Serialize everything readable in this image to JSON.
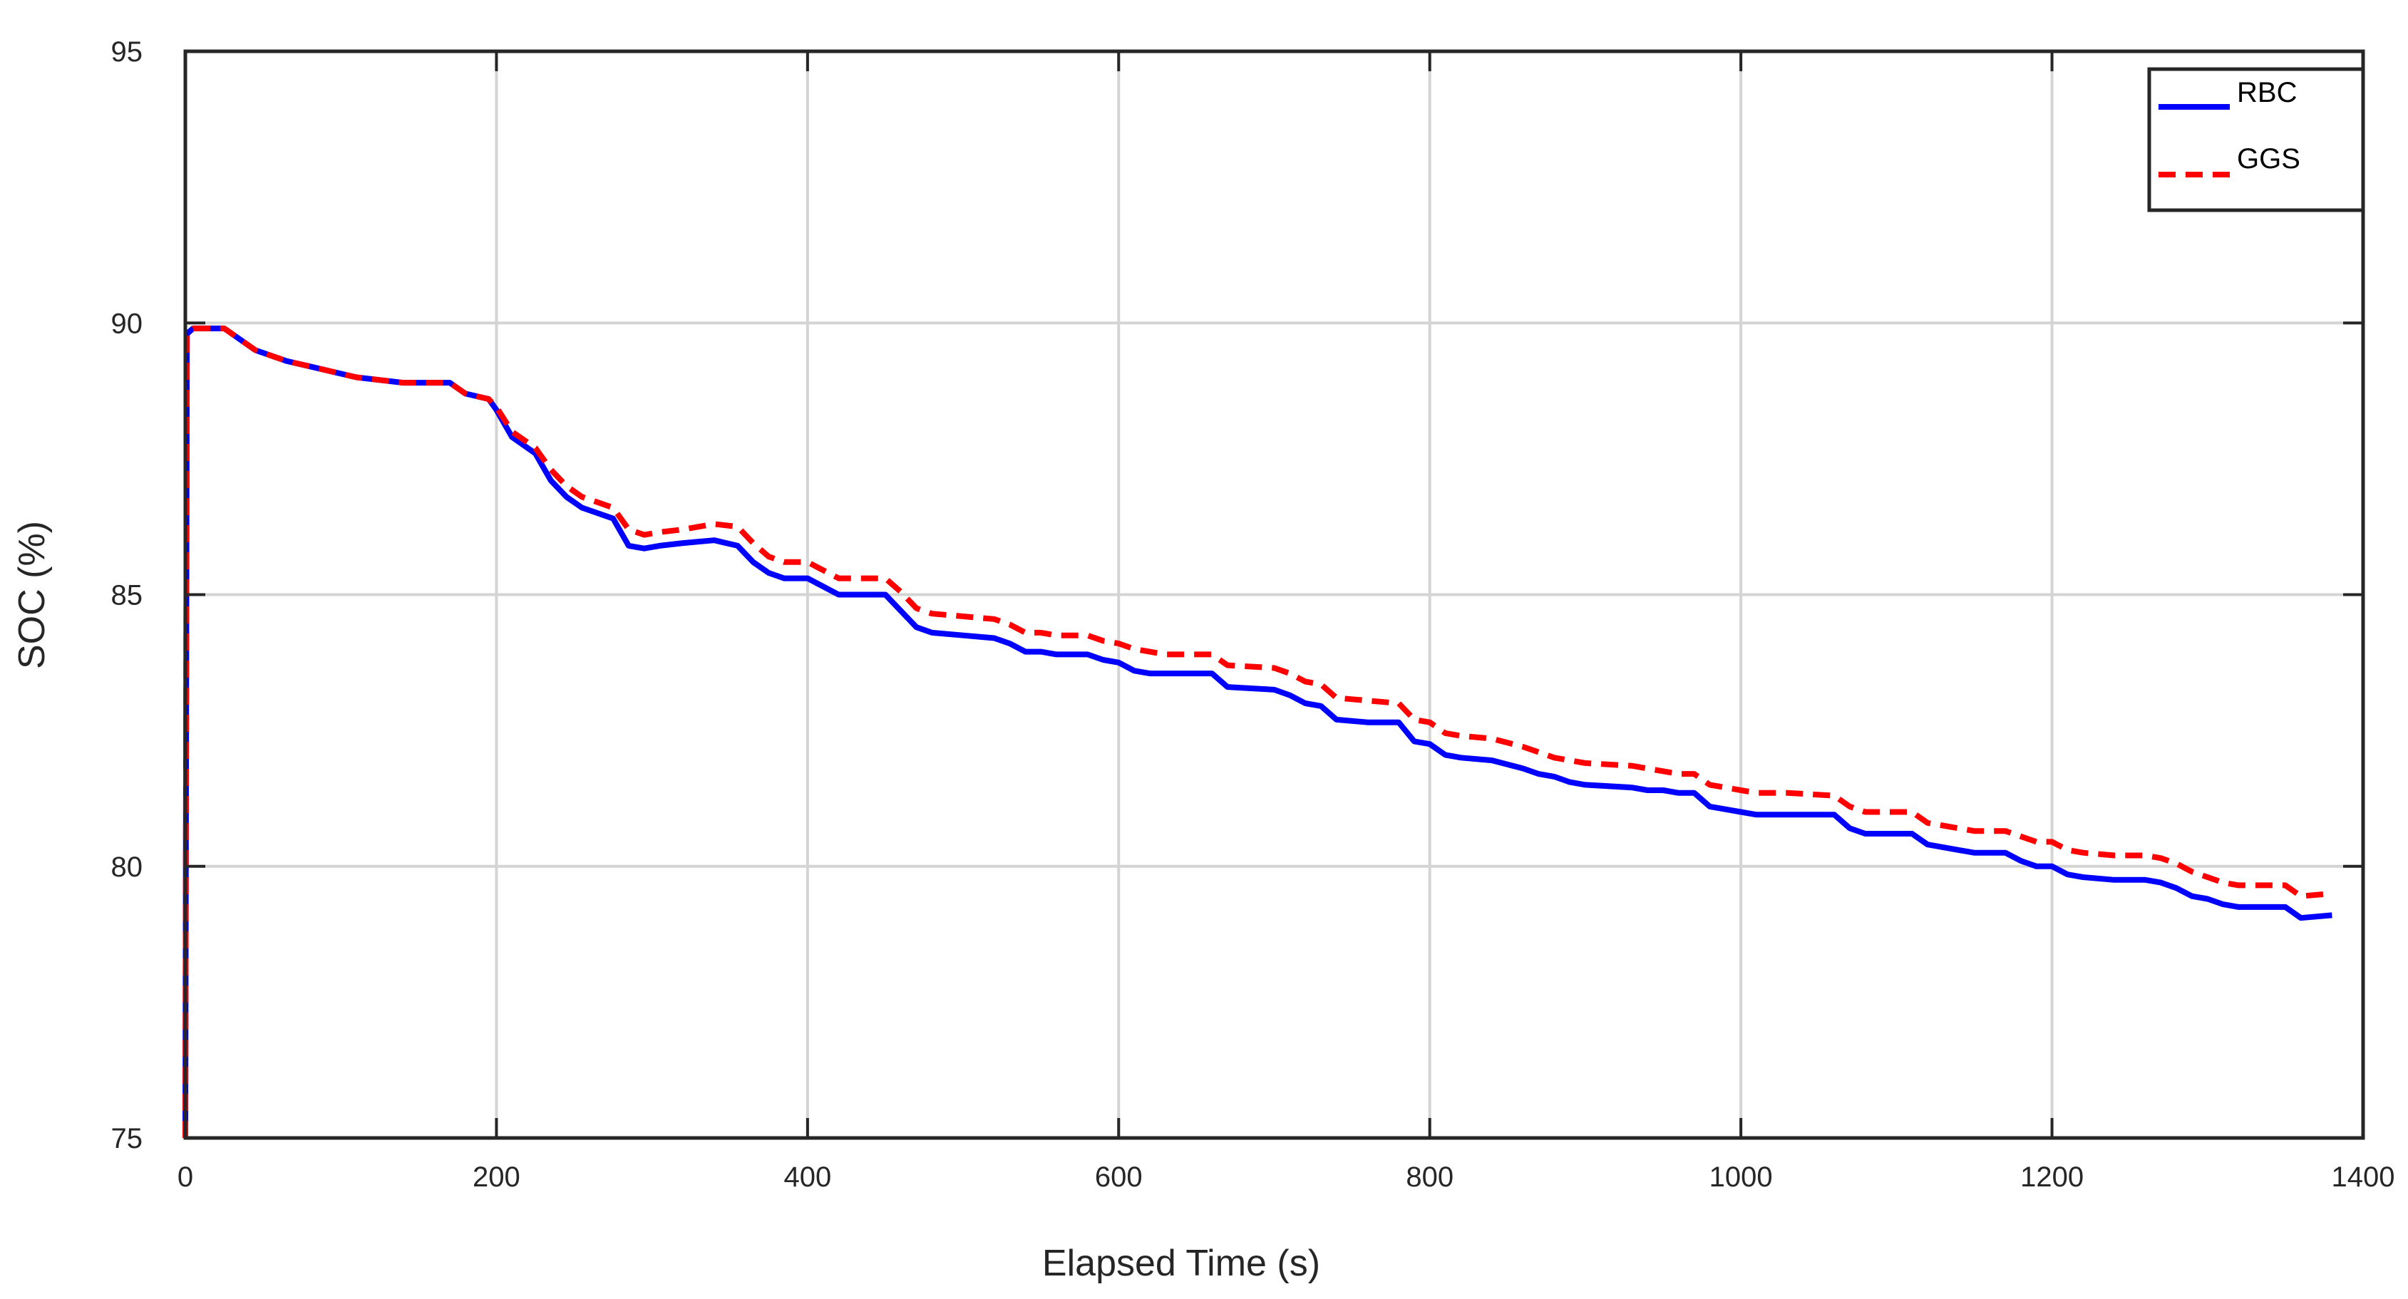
{
  "chart_data": {
    "type": "line",
    "title": "",
    "xlabel": "Elapsed Time (s)",
    "ylabel": "SOC (%)",
    "xlim": [
      0,
      1400
    ],
    "ylim": [
      75,
      95
    ],
    "xticks": [
      0,
      200,
      400,
      600,
      800,
      1000,
      1200,
      1400
    ],
    "yticks": [
      75,
      80,
      85,
      90,
      95
    ],
    "x_tick_labels": [
      "0",
      "200",
      "400",
      "600",
      "800",
      "1000",
      "1200",
      "1400"
    ],
    "y_tick_labels": [
      "75",
      "80",
      "85",
      "90",
      "95"
    ],
    "grid": true,
    "legend_position": "top-right",
    "series": [
      {
        "name": "RBC",
        "color": "#0000ff",
        "style": "solid",
        "x": [
          0,
          1,
          5,
          25,
          35,
          45,
          55,
          65,
          80,
          95,
          110,
          125,
          140,
          170,
          180,
          195,
          200,
          210,
          225,
          235,
          245,
          255,
          265,
          275,
          285,
          295,
          305,
          320,
          340,
          355,
          365,
          375,
          385,
          400,
          410,
          420,
          450,
          460,
          470,
          480,
          500,
          520,
          530,
          540,
          550,
          560,
          580,
          590,
          600,
          610,
          620,
          630,
          660,
          670,
          700,
          710,
          720,
          730,
          740,
          760,
          780,
          790,
          800,
          810,
          820,
          840,
          860,
          870,
          880,
          890,
          900,
          930,
          940,
          950,
          960,
          970,
          980,
          990,
          1000,
          1010,
          1020,
          1030,
          1060,
          1070,
          1080,
          1090,
          1110,
          1120,
          1140,
          1150,
          1160,
          1170,
          1180,
          1190,
          1200,
          1210,
          1220,
          1240,
          1260,
          1270,
          1280,
          1290,
          1300,
          1310,
          1320,
          1350,
          1360,
          1380
        ],
        "y": [
          75,
          89.8,
          89.9,
          89.9,
          89.7,
          89.5,
          89.4,
          89.3,
          89.2,
          89.1,
          89.0,
          88.95,
          88.9,
          88.9,
          88.7,
          88.6,
          88.4,
          87.9,
          87.6,
          87.1,
          86.8,
          86.6,
          86.5,
          86.4,
          85.9,
          85.85,
          85.9,
          85.95,
          86.0,
          85.9,
          85.6,
          85.4,
          85.3,
          85.3,
          85.15,
          85.0,
          85.0,
          84.7,
          84.4,
          84.3,
          84.25,
          84.2,
          84.1,
          83.95,
          83.95,
          83.9,
          83.9,
          83.8,
          83.75,
          83.6,
          83.55,
          83.55,
          83.55,
          83.3,
          83.25,
          83.15,
          83.0,
          82.95,
          82.7,
          82.65,
          82.65,
          82.3,
          82.25,
          82.05,
          82.0,
          81.95,
          81.8,
          81.7,
          81.65,
          81.55,
          81.5,
          81.45,
          81.4,
          81.4,
          81.35,
          81.35,
          81.1,
          81.05,
          81.0,
          80.95,
          80.95,
          80.95,
          80.95,
          80.7,
          80.6,
          80.6,
          80.6,
          80.4,
          80.3,
          80.25,
          80.25,
          80.25,
          80.1,
          80.0,
          80.0,
          79.85,
          79.8,
          79.75,
          79.75,
          79.7,
          79.6,
          79.45,
          79.4,
          79.3,
          79.25,
          79.25,
          79.05,
          79.1
        ]
      },
      {
        "name": "GGS",
        "color": "#ff0000",
        "style": "dashed",
        "x": [
          0,
          1,
          5,
          25,
          35,
          45,
          55,
          65,
          80,
          95,
          110,
          125,
          140,
          170,
          180,
          195,
          200,
          210,
          225,
          235,
          245,
          255,
          265,
          275,
          285,
          295,
          305,
          320,
          340,
          355,
          365,
          375,
          385,
          400,
          410,
          420,
          450,
          460,
          470,
          480,
          500,
          520,
          530,
          540,
          550,
          560,
          580,
          590,
          600,
          610,
          620,
          630,
          660,
          670,
          700,
          710,
          720,
          730,
          740,
          760,
          780,
          790,
          800,
          810,
          820,
          840,
          860,
          870,
          880,
          890,
          900,
          930,
          940,
          950,
          960,
          970,
          980,
          990,
          1000,
          1010,
          1020,
          1030,
          1060,
          1070,
          1080,
          1090,
          1110,
          1120,
          1140,
          1150,
          1160,
          1170,
          1180,
          1190,
          1200,
          1210,
          1220,
          1240,
          1260,
          1270,
          1280,
          1290,
          1300,
          1310,
          1320,
          1350,
          1360,
          1380
        ],
        "y": [
          75,
          89.8,
          89.9,
          89.9,
          89.7,
          89.5,
          89.4,
          89.3,
          89.2,
          89.1,
          89.0,
          88.95,
          88.9,
          88.9,
          88.7,
          88.6,
          88.45,
          88.0,
          87.7,
          87.3,
          87.0,
          86.8,
          86.7,
          86.6,
          86.2,
          86.1,
          86.15,
          86.2,
          86.3,
          86.25,
          85.95,
          85.7,
          85.6,
          85.6,
          85.45,
          85.3,
          85.3,
          85.05,
          84.75,
          84.65,
          84.6,
          84.55,
          84.45,
          84.3,
          84.3,
          84.25,
          84.25,
          84.15,
          84.1,
          84.0,
          83.95,
          83.9,
          83.9,
          83.7,
          83.65,
          83.55,
          83.4,
          83.35,
          83.1,
          83.05,
          83.0,
          82.7,
          82.65,
          82.45,
          82.4,
          82.35,
          82.2,
          82.1,
          82.0,
          81.95,
          81.9,
          81.85,
          81.8,
          81.75,
          81.7,
          81.7,
          81.5,
          81.45,
          81.4,
          81.35,
          81.35,
          81.35,
          81.3,
          81.1,
          81.0,
          81.0,
          81.0,
          80.8,
          80.7,
          80.65,
          80.65,
          80.65,
          80.55,
          80.45,
          80.45,
          80.3,
          80.25,
          80.2,
          80.2,
          80.15,
          80.05,
          79.9,
          79.8,
          79.7,
          79.65,
          79.65,
          79.45,
          79.5
        ]
      }
    ]
  }
}
